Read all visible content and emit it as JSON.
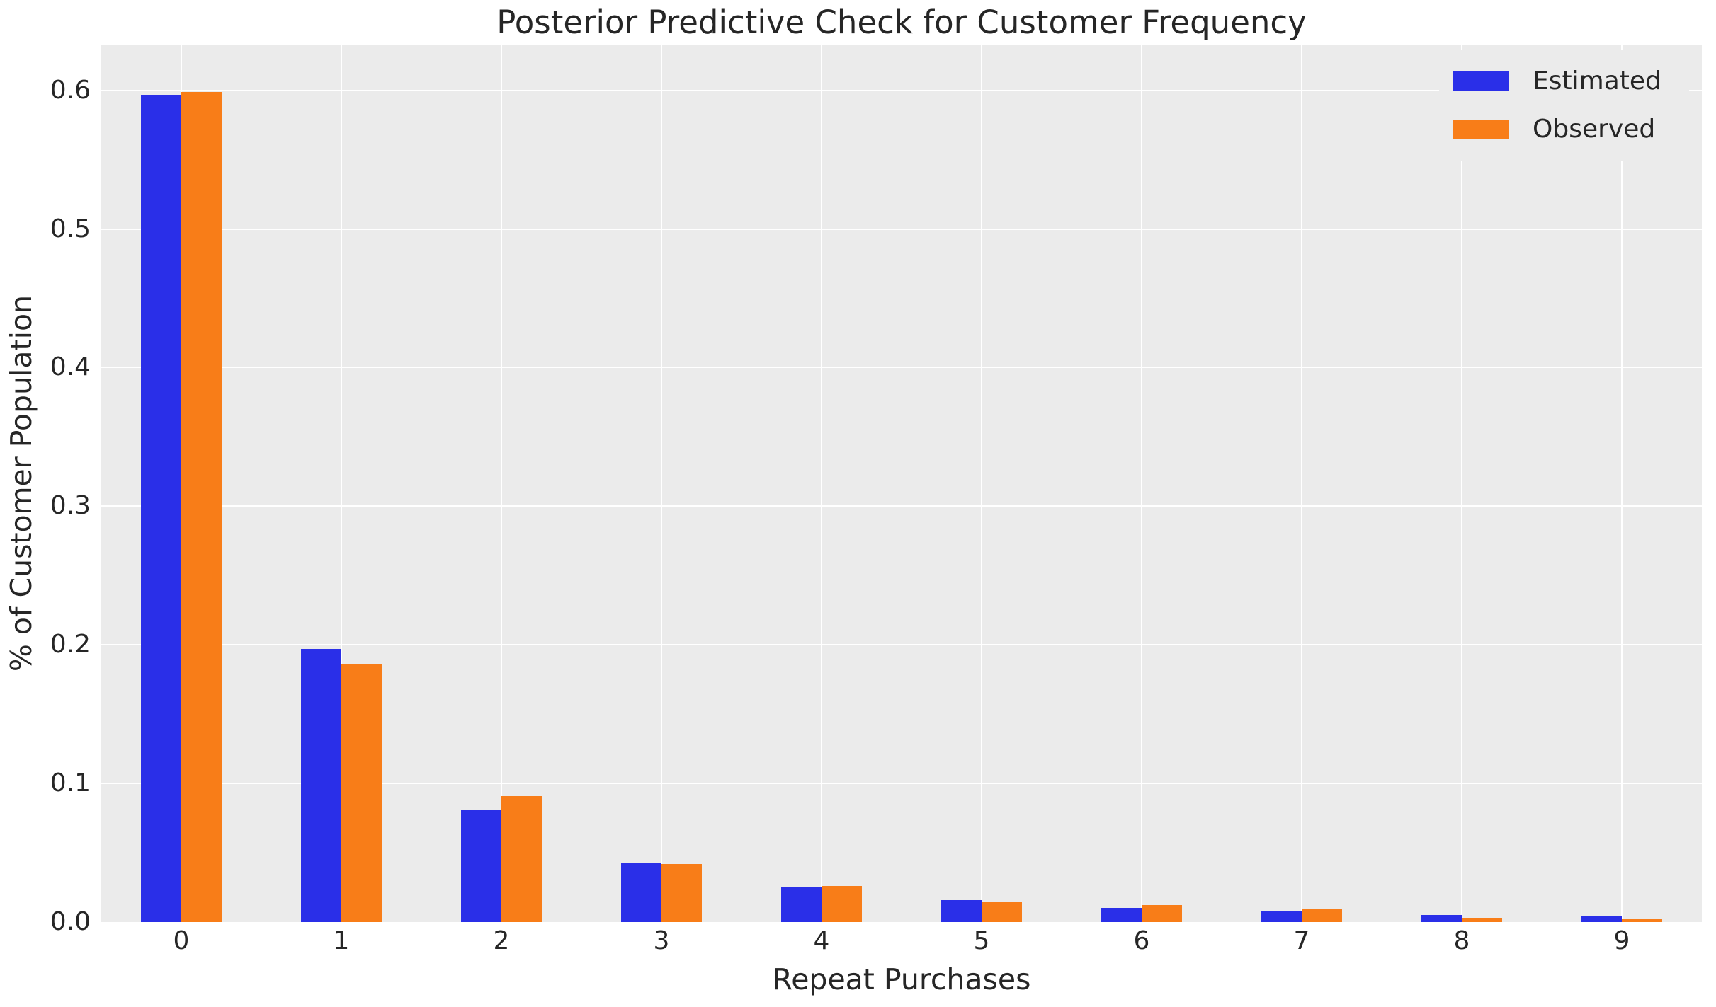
{
  "chart_data": {
    "type": "bar",
    "title": "Posterior Predictive Check for Customer Frequency",
    "xlabel": "Repeat Purchases",
    "ylabel": "% of Customer Population",
    "categories": [
      "0",
      "1",
      "2",
      "3",
      "4",
      "5",
      "6",
      "7",
      "8",
      "9"
    ],
    "series": [
      {
        "name": "Estimated",
        "color": "#2a2fe8",
        "values": [
          0.597,
          0.197,
          0.081,
          0.043,
          0.025,
          0.016,
          0.01,
          0.008,
          0.005,
          0.004
        ]
      },
      {
        "name": "Observed",
        "color": "#f87d18",
        "values": [
          0.599,
          0.186,
          0.091,
          0.042,
          0.026,
          0.015,
          0.012,
          0.009,
          0.003,
          0.002
        ]
      }
    ],
    "ylim": [
      0,
      0.633
    ],
    "yticks": [
      0,
      0.1,
      0.2,
      0.3,
      0.4,
      0.5,
      0.6
    ],
    "ytick_labels": [
      "0.0",
      "0.1",
      "0.2",
      "0.3",
      "0.4",
      "0.5",
      "0.6"
    ],
    "grid": true,
    "legend_position": "upper right"
  },
  "style": {
    "figure_background": "#ffffff",
    "axes_background": "#ebebeb",
    "grid_color": "#ffffff",
    "text_color": "#262626"
  }
}
